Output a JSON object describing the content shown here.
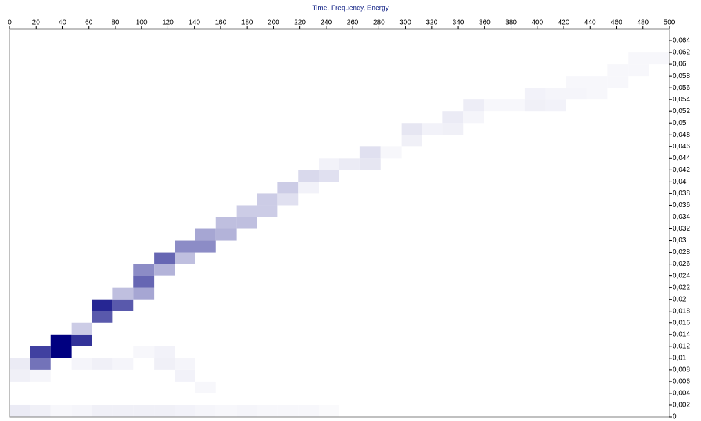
{
  "chart_data": {
    "type": "heatmap",
    "title": "Time, Frequency, Energy",
    "color": "#000080",
    "xlim": [
      0,
      500
    ],
    "ylim": [
      0,
      0.066
    ],
    "xticks": [
      0,
      20,
      40,
      60,
      80,
      100,
      120,
      140,
      160,
      180,
      200,
      220,
      240,
      260,
      280,
      300,
      320,
      340,
      360,
      380,
      400,
      420,
      440,
      460,
      480,
      500
    ],
    "yticks": [
      0,
      {
        "value": 0.002,
        "label": "0,002"
      },
      {
        "value": 0.004,
        "label": "0,004"
      },
      {
        "value": 0.006,
        "label": "0,006"
      },
      {
        "value": 0.008,
        "label": "0,008"
      },
      {
        "value": 0.01,
        "label": "0,01"
      },
      {
        "value": 0.012,
        "label": "0,012"
      },
      {
        "value": 0.014,
        "label": "0,014"
      },
      {
        "value": 0.016,
        "label": "0,016"
      },
      {
        "value": 0.018,
        "label": "0,018"
      },
      {
        "value": 0.02,
        "label": "0,02"
      },
      {
        "value": 0.022,
        "label": "0,022"
      },
      {
        "value": 0.024,
        "label": "0,024"
      },
      {
        "value": 0.026,
        "label": "0,026"
      },
      {
        "value": 0.028,
        "label": "0,028"
      },
      {
        "value": 0.03,
        "label": "0,03"
      },
      {
        "value": 0.032,
        "label": "0,032"
      },
      {
        "value": 0.034,
        "label": "0,034"
      },
      {
        "value": 0.036,
        "label": "0,036"
      },
      {
        "value": 0.038,
        "label": "0,038"
      },
      {
        "value": 0.04,
        "label": "0,04"
      },
      {
        "value": 0.042,
        "label": "0,042"
      },
      {
        "value": 0.044,
        "label": "0,044"
      },
      {
        "value": 0.046,
        "label": "0,046"
      },
      {
        "value": 0.048,
        "label": "0,048"
      },
      {
        "value": 0.05,
        "label": "0,05"
      },
      {
        "value": 0.052,
        "label": "0,052"
      },
      {
        "value": 0.054,
        "label": "0,054"
      },
      {
        "value": 0.056,
        "label": "0,056"
      },
      {
        "value": 0.058,
        "label": "0,058"
      },
      {
        "value": 0.06,
        "label": "0,06"
      },
      {
        "value": 0.062,
        "label": "0,062"
      },
      {
        "value": 0.064,
        "label": "0,064"
      }
    ],
    "cells": [
      {
        "x": 0,
        "y": 0,
        "value": 0.08
      },
      {
        "x": 0,
        "y": 0.006,
        "value": 0.06
      },
      {
        "x": 0,
        "y": 0.008,
        "value": 0.08
      },
      {
        "x": 15.625,
        "y": 0,
        "value": 0.06
      },
      {
        "x": 15.625,
        "y": 0.006,
        "value": 0.04
      },
      {
        "x": 15.625,
        "y": 0.008,
        "value": 0.55
      },
      {
        "x": 15.625,
        "y": 0.01,
        "value": 0.75
      },
      {
        "x": 31.25,
        "y": 0,
        "value": 0.03
      },
      {
        "x": 31.25,
        "y": 0.01,
        "value": 1
      },
      {
        "x": 31.25,
        "y": 0.012,
        "value": 1
      },
      {
        "x": 46.875,
        "y": 0,
        "value": 0.04
      },
      {
        "x": 46.875,
        "y": 0.008,
        "value": 0.04
      },
      {
        "x": 46.875,
        "y": 0.012,
        "value": 0.8
      },
      {
        "x": 46.875,
        "y": 0.014,
        "value": 0.2
      },
      {
        "x": 62.5,
        "y": 0,
        "value": 0.06
      },
      {
        "x": 62.5,
        "y": 0.008,
        "value": 0.06
      },
      {
        "x": 62.5,
        "y": 0.016,
        "value": 0.65
      },
      {
        "x": 62.5,
        "y": 0.018,
        "value": 0.85
      },
      {
        "x": 78.125,
        "y": 0,
        "value": 0.06
      },
      {
        "x": 78.125,
        "y": 0.008,
        "value": 0.04
      },
      {
        "x": 78.125,
        "y": 0.018,
        "value": 0.65
      },
      {
        "x": 78.125,
        "y": 0.02,
        "value": 0.25
      },
      {
        "x": 93.75,
        "y": 0,
        "value": 0.06
      },
      {
        "x": 93.75,
        "y": 0.01,
        "value": 0.03
      },
      {
        "x": 93.75,
        "y": 0.02,
        "value": 0.35
      },
      {
        "x": 93.75,
        "y": 0.022,
        "value": 0.6
      },
      {
        "x": 93.75,
        "y": 0.024,
        "value": 0.45
      },
      {
        "x": 109.375,
        "y": 0,
        "value": 0.06
      },
      {
        "x": 109.375,
        "y": 0.008,
        "value": 0.06
      },
      {
        "x": 109.375,
        "y": 0.01,
        "value": 0.05
      },
      {
        "x": 109.375,
        "y": 0.024,
        "value": 0.3
      },
      {
        "x": 109.375,
        "y": 0.026,
        "value": 0.6
      },
      {
        "x": 125,
        "y": 0,
        "value": 0.05
      },
      {
        "x": 125,
        "y": 0.006,
        "value": 0.05
      },
      {
        "x": 125,
        "y": 0.008,
        "value": 0.04
      },
      {
        "x": 125,
        "y": 0.026,
        "value": 0.25
      },
      {
        "x": 125,
        "y": 0.028,
        "value": 0.45
      },
      {
        "x": 140.625,
        "y": 0,
        "value": 0.04
      },
      {
        "x": 140.625,
        "y": 0.004,
        "value": 0.03
      },
      {
        "x": 140.625,
        "y": 0.028,
        "value": 0.45
      },
      {
        "x": 140.625,
        "y": 0.03,
        "value": 0.35
      },
      {
        "x": 156.25,
        "y": 0,
        "value": 0.03
      },
      {
        "x": 156.25,
        "y": 0.03,
        "value": 0.3
      },
      {
        "x": 156.25,
        "y": 0.032,
        "value": 0.25
      },
      {
        "x": 171.875,
        "y": 0,
        "value": 0.04
      },
      {
        "x": 171.875,
        "y": 0.032,
        "value": 0.25
      },
      {
        "x": 171.875,
        "y": 0.034,
        "value": 0.2
      },
      {
        "x": 187.5,
        "y": 0,
        "value": 0.03
      },
      {
        "x": 187.5,
        "y": 0.034,
        "value": 0.2
      },
      {
        "x": 187.5,
        "y": 0.036,
        "value": 0.2
      },
      {
        "x": 203.125,
        "y": 0,
        "value": 0.03
      },
      {
        "x": 203.125,
        "y": 0.036,
        "value": 0.12
      },
      {
        "x": 203.125,
        "y": 0.038,
        "value": 0.2
      },
      {
        "x": 218.75,
        "y": 0,
        "value": 0.03
      },
      {
        "x": 218.75,
        "y": 0.038,
        "value": 0.05
      },
      {
        "x": 218.75,
        "y": 0.04,
        "value": 0.15
      },
      {
        "x": 234.375,
        "y": 0,
        "value": 0.02
      },
      {
        "x": 234.375,
        "y": 0.04,
        "value": 0.12
      },
      {
        "x": 234.375,
        "y": 0.042,
        "value": 0.05
      },
      {
        "x": 250,
        "y": 0.042,
        "value": 0.08
      },
      {
        "x": 265.625,
        "y": 0.042,
        "value": 0.1
      },
      {
        "x": 265.625,
        "y": 0.044,
        "value": 0.12
      },
      {
        "x": 281.25,
        "y": 0.044,
        "value": 0.03
      },
      {
        "x": 296.875,
        "y": 0.046,
        "value": 0.06
      },
      {
        "x": 296.875,
        "y": 0.048,
        "value": 0.1
      },
      {
        "x": 312.5,
        "y": 0.048,
        "value": 0.05
      },
      {
        "x": 328.125,
        "y": 0.048,
        "value": 0.06
      },
      {
        "x": 328.125,
        "y": 0.05,
        "value": 0.08
      },
      {
        "x": 343.75,
        "y": 0.05,
        "value": 0.04
      },
      {
        "x": 343.75,
        "y": 0.052,
        "value": 0.07
      },
      {
        "x": 359.375,
        "y": 0.052,
        "value": 0.03
      },
      {
        "x": 375,
        "y": 0.052,
        "value": 0.03
      },
      {
        "x": 390.625,
        "y": 0.052,
        "value": 0.06
      },
      {
        "x": 390.625,
        "y": 0.054,
        "value": 0.05
      },
      {
        "x": 406.25,
        "y": 0.052,
        "value": 0.05
      },
      {
        "x": 406.25,
        "y": 0.054,
        "value": 0.04
      },
      {
        "x": 421.875,
        "y": 0.054,
        "value": 0.04
      },
      {
        "x": 421.875,
        "y": 0.056,
        "value": 0.03
      },
      {
        "x": 437.5,
        "y": 0.054,
        "value": 0.03
      },
      {
        "x": 437.5,
        "y": 0.056,
        "value": 0.03
      },
      {
        "x": 453.125,
        "y": 0.056,
        "value": 0.03
      },
      {
        "x": 453.125,
        "y": 0.058,
        "value": 0.03
      },
      {
        "x": 468.75,
        "y": 0.058,
        "value": 0.03
      },
      {
        "x": 468.75,
        "y": 0.06,
        "value": 0.03
      },
      {
        "x": 484.375,
        "y": 0.06,
        "value": 0.03
      }
    ]
  }
}
